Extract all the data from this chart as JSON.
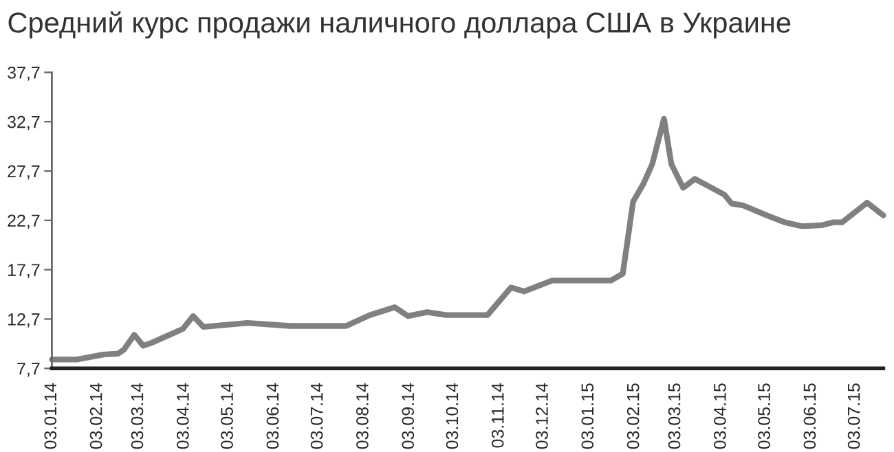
{
  "chart_data": {
    "type": "line",
    "title": "Средний курс продажи наличного доллара США в Украине",
    "x": [
      "2014-01-03",
      "2014-01-20",
      "2014-02-07",
      "2014-02-17",
      "2014-02-21",
      "2014-02-28",
      "2014-03-06",
      "2014-03-12",
      "2014-03-24",
      "2014-04-02",
      "2014-04-09",
      "2014-04-16",
      "2014-05-16",
      "2014-06-14",
      "2014-07-22",
      "2014-08-07",
      "2014-08-24",
      "2014-09-02",
      "2014-09-15",
      "2014-09-28",
      "2014-10-26",
      "2014-11-11",
      "2014-11-20",
      "2014-12-09",
      "2015-01-18",
      "2015-01-26",
      "2015-02-02",
      "2015-02-09",
      "2015-02-15",
      "2015-02-23",
      "2015-02-28",
      "2015-03-08",
      "2015-03-16",
      "2015-04-05",
      "2015-04-10",
      "2015-04-18",
      "2015-05-04",
      "2015-05-16",
      "2015-05-28",
      "2015-06-10",
      "2015-06-18",
      "2015-06-24",
      "2015-07-11",
      "2015-07-22"
    ],
    "series": [
      {
        "color": "#808080",
        "values": [
          8.6,
          8.6,
          9.1,
          9.2,
          9.6,
          11.1,
          10.0,
          10.3,
          11.1,
          11.7,
          13.0,
          11.9,
          12.3,
          12.0,
          12.0,
          13.1,
          13.9,
          13.0,
          13.4,
          13.1,
          13.1,
          15.9,
          15.5,
          16.6,
          16.6,
          17.3,
          24.6,
          26.4,
          28.4,
          33.0,
          28.4,
          26.0,
          26.9,
          25.3,
          24.4,
          24.2,
          23.2,
          22.5,
          22.1,
          22.2,
          22.5,
          22.5,
          24.5,
          23.2
        ]
      }
    ],
    "xlim": [
      "2014-01-03",
      "2015-07-22"
    ],
    "ylim": [
      7.7,
      37.7
    ],
    "yticks": [
      {
        "value": 7.7,
        "label": "7,7"
      },
      {
        "value": 12.7,
        "label": "12,7"
      },
      {
        "value": 17.7,
        "label": "17,7"
      },
      {
        "value": 22.7,
        "label": "22,7"
      },
      {
        "value": 27.7,
        "label": "27,7"
      },
      {
        "value": 32.7,
        "label": "32,7"
      },
      {
        "value": 37.7,
        "label": "37,7"
      }
    ],
    "xticks": [
      {
        "value": "2014-01-03",
        "label": "03.01.14"
      },
      {
        "value": "2014-02-03",
        "label": "03.02.14"
      },
      {
        "value": "2014-03-03",
        "label": "03.03.14"
      },
      {
        "value": "2014-04-03",
        "label": "03.04.14"
      },
      {
        "value": "2014-05-03",
        "label": "03.05.14"
      },
      {
        "value": "2014-06-03",
        "label": "03.06.14"
      },
      {
        "value": "2014-07-03",
        "label": "03.07.14"
      },
      {
        "value": "2014-08-03",
        "label": "03.08.14"
      },
      {
        "value": "2014-09-03",
        "label": "03.09.14"
      },
      {
        "value": "2014-10-03",
        "label": "03.10.14"
      },
      {
        "value": "2014-11-03",
        "label": "03.11.14"
      },
      {
        "value": "2014-12-03",
        "label": "03.12.14"
      },
      {
        "value": "2015-01-03",
        "label": "03.01.15"
      },
      {
        "value": "2015-02-03",
        "label": "03.02.15"
      },
      {
        "value": "2015-03-03",
        "label": "03.03.15"
      },
      {
        "value": "2015-04-03",
        "label": "03.04.15"
      },
      {
        "value": "2015-05-03",
        "label": "03.05.15"
      },
      {
        "value": "2015-06-03",
        "label": "03.06.15"
      },
      {
        "value": "2015-07-03",
        "label": "03.07.15"
      }
    ],
    "grid": false,
    "legend": false,
    "marker": "none",
    "line_style": "solid"
  }
}
